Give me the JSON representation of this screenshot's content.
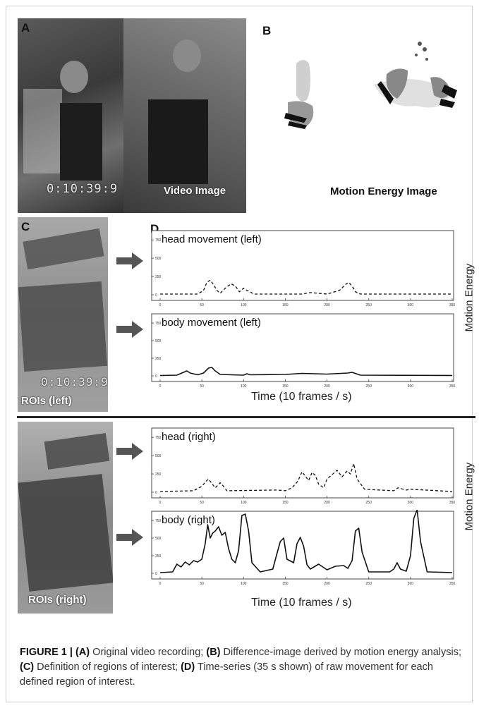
{
  "panels": {
    "a": {
      "letter": "A",
      "timecode": "0:10:39:9",
      "video_label": "Video Image"
    },
    "b": {
      "letter": "B",
      "label": "Motion Energy Image"
    },
    "c": {
      "letter": "C",
      "left_label": "ROIs (left)",
      "left_timecode": "0:10:39:9",
      "right_label": "ROIs (right)"
    },
    "d": {
      "letter": "D"
    }
  },
  "axis": {
    "x_label": "Time (10 frames / s)",
    "y_label": "Motion Energy"
  },
  "chart_data": [
    {
      "type": "line",
      "title": "head movement (left)",
      "dashed": true,
      "ylim": [
        0,
        800
      ],
      "xlim": [
        0,
        350
      ],
      "yticks": [
        0,
        250,
        500,
        750
      ],
      "xticks": [
        0,
        50,
        100,
        150,
        200,
        250,
        300,
        350
      ],
      "x": [
        0,
        45,
        52,
        56,
        60,
        64,
        68,
        72,
        78,
        85,
        90,
        95,
        100,
        104,
        108,
        112,
        170,
        180,
        200,
        215,
        222,
        226,
        230,
        234,
        240,
        350
      ],
      "values": [
        10,
        10,
        60,
        170,
        200,
        140,
        60,
        20,
        90,
        150,
        120,
        40,
        90,
        60,
        40,
        10,
        10,
        30,
        10,
        60,
        140,
        170,
        120,
        40,
        10,
        10
      ]
    },
    {
      "type": "line",
      "title": "body movement (left)",
      "dashed": false,
      "ylim": [
        0,
        800
      ],
      "xlim": [
        0,
        350
      ],
      "yticks": [
        0,
        250,
        500,
        750
      ],
      "xticks": [
        0,
        50,
        100,
        150,
        200,
        250,
        300,
        350
      ],
      "x": [
        0,
        20,
        28,
        32,
        36,
        45,
        52,
        58,
        62,
        66,
        72,
        100,
        104,
        108,
        150,
        170,
        200,
        225,
        230,
        235,
        240,
        350
      ],
      "values": [
        5,
        10,
        50,
        70,
        40,
        15,
        40,
        110,
        120,
        70,
        20,
        10,
        30,
        15,
        20,
        35,
        25,
        40,
        50,
        30,
        10,
        5
      ]
    },
    {
      "type": "line",
      "title": "head (right)",
      "dashed": true,
      "ylim": [
        0,
        800
      ],
      "xlim": [
        0,
        350
      ],
      "yticks": [
        0,
        250,
        500,
        750
      ],
      "xticks": [
        0,
        50,
        100,
        150,
        200,
        250,
        300,
        350
      ],
      "x": [
        0,
        40,
        50,
        55,
        58,
        62,
        66,
        72,
        76,
        80,
        140,
        150,
        158,
        165,
        170,
        174,
        178,
        182,
        186,
        190,
        196,
        200,
        206,
        212,
        218,
        224,
        228,
        232,
        236,
        245,
        280,
        285,
        295,
        300,
        350
      ],
      "values": [
        10,
        20,
        80,
        150,
        180,
        120,
        60,
        130,
        80,
        20,
        30,
        20,
        60,
        150,
        280,
        220,
        160,
        270,
        230,
        110,
        60,
        180,
        240,
        300,
        210,
        290,
        250,
        390,
        180,
        40,
        20,
        60,
        30,
        40,
        10
      ]
    },
    {
      "type": "line",
      "title": "body (right)",
      "dashed": false,
      "ylim": [
        0,
        800
      ],
      "xlim": [
        0,
        350
      ],
      "yticks": [
        0,
        250,
        500,
        750
      ],
      "xticks": [
        0,
        50,
        100,
        150,
        200,
        250,
        300,
        350
      ],
      "x": [
        0,
        15,
        20,
        25,
        30,
        35,
        40,
        45,
        50,
        54,
        57,
        60,
        63,
        66,
        70,
        74,
        78,
        82,
        86,
        90,
        94,
        98,
        102,
        106,
        110,
        120,
        135,
        140,
        144,
        148,
        152,
        160,
        164,
        168,
        172,
        176,
        180,
        190,
        200,
        210,
        220,
        225,
        230,
        234,
        238,
        242,
        250,
        275,
        280,
        284,
        288,
        295,
        300,
        304,
        308,
        312,
        320,
        350
      ],
      "values": [
        10,
        20,
        130,
        90,
        160,
        120,
        180,
        160,
        200,
        420,
        690,
        500,
        570,
        600,
        660,
        540,
        580,
        350,
        200,
        150,
        320,
        820,
        840,
        600,
        150,
        20,
        60,
        280,
        450,
        500,
        200,
        150,
        420,
        510,
        380,
        120,
        60,
        130,
        50,
        100,
        110,
        70,
        180,
        600,
        640,
        300,
        20,
        20,
        60,
        150,
        60,
        30,
        250,
        780,
        900,
        450,
        20,
        10
      ]
    }
  ],
  "caption": {
    "fig": "FIGURE 1 |",
    "a_tag": "(A)",
    "a_text": "Original video recording;",
    "b_tag": "(B)",
    "b_text": "Difference-image derived by motion energy analysis;",
    "c_tag": "(C)",
    "c_text": "Definition of regions of interest;",
    "d_tag": "(D)",
    "d_text": "Time-series (35 s shown) of raw movement for each defined region of interest."
  }
}
